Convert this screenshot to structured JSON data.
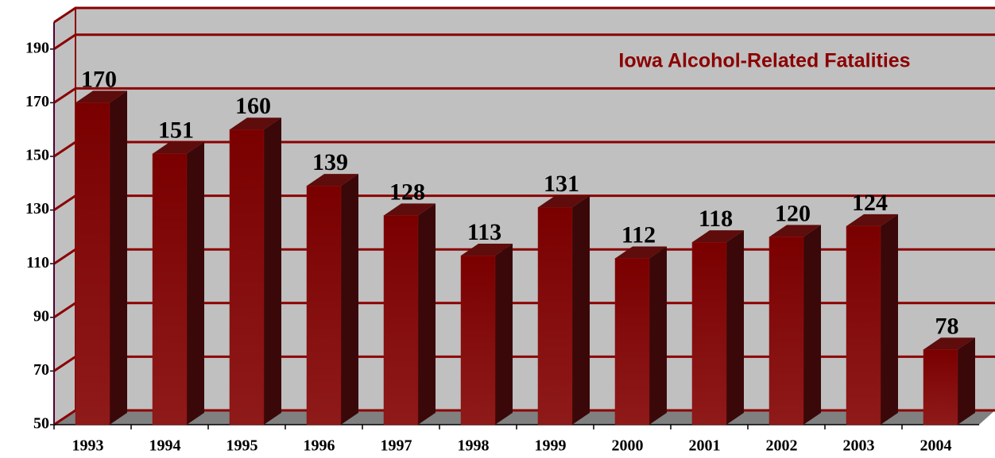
{
  "chart_data": {
    "type": "bar3d",
    "title": "Iowa Alcohol-Related Fatalities",
    "categories": [
      "1993",
      "1994",
      "1995",
      "1996",
      "1997",
      "1998",
      "1999",
      "2000",
      "2001",
      "2002",
      "2003",
      "2004"
    ],
    "values": [
      170,
      151,
      160,
      139,
      128,
      113,
      131,
      112,
      118,
      120,
      124,
      78
    ],
    "color": "#8b1212",
    "ylim": [
      50,
      200
    ],
    "yticks": [
      50,
      70,
      90,
      110,
      130,
      150,
      170,
      190
    ],
    "grid": true
  }
}
